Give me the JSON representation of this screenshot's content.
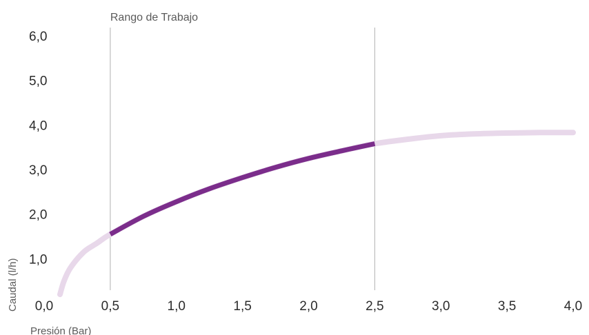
{
  "chart_data": {
    "type": "line",
    "xlabel": "Presión (Bar)",
    "ylabel": "Caudal (l/h)",
    "xlim": [
      0,
      4
    ],
    "ylim": [
      0,
      6
    ],
    "x_ticks": [
      "0,0",
      "0,5",
      "1,0",
      "1,5",
      "2,0",
      "2,5",
      "3,0",
      "3,5",
      "4,0"
    ],
    "y_ticks": [
      "1,0",
      "2,0",
      "3,0",
      "4,0",
      "5,0",
      "6,0"
    ],
    "grid": false,
    "annotation": {
      "label": "Rango de Trabajo",
      "x_start": 0.5,
      "x_end": 2.5
    },
    "series": [
      {
        "x": [
          0.12,
          0.15,
          0.2,
          0.3,
          0.4,
          0.5,
          0.75,
          1.0,
          1.25,
          1.5,
          1.75,
          2.0,
          2.25,
          2.5,
          2.75,
          3.0,
          3.25,
          3.5,
          3.75,
          4.0
        ],
        "values": [
          0.2,
          0.5,
          0.8,
          1.15,
          1.35,
          1.55,
          1.95,
          2.28,
          2.57,
          2.82,
          3.05,
          3.25,
          3.42,
          3.58,
          3.68,
          3.76,
          3.8,
          3.82,
          3.83,
          3.83
        ],
        "color_in_range": "#7b2d8b",
        "color_out_range": "#e8d8ea"
      }
    ]
  }
}
